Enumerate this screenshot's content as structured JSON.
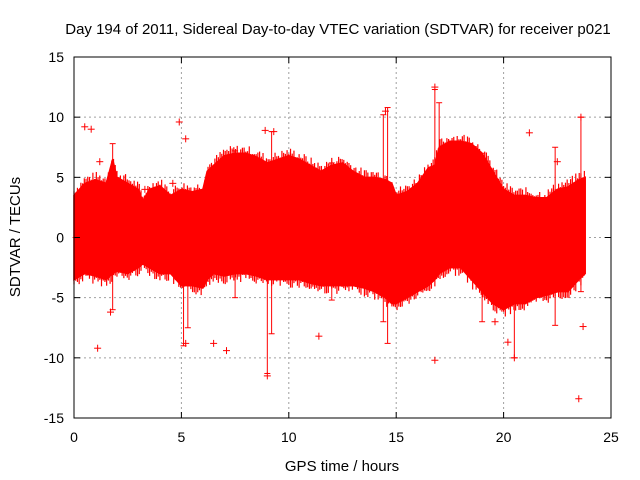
{
  "chart_data": {
    "type": "scatter",
    "title": "Day 194 of 2011, Sidereal Day-to-day VTEC variation (SDTVAR) for receiver p021",
    "xlabel": "GPS time / hours",
    "ylabel": "SDTVAR / TECUs",
    "xlim": [
      0,
      25
    ],
    "ylim": [
      -15,
      15
    ],
    "xticks": [
      0,
      5,
      10,
      15,
      20,
      25
    ],
    "yticks": [
      -15,
      -10,
      -5,
      0,
      5,
      10,
      15
    ],
    "xtick_labels": [
      "0",
      "5",
      "10",
      "15",
      "20",
      "25"
    ],
    "ytick_labels": [
      "-15",
      "-10",
      "-5",
      "0",
      "5",
      "10",
      "15"
    ],
    "grid": true,
    "series_color": "#ff0000",
    "marker": "+",
    "band_x": [
      0,
      0.5,
      1.0,
      1.5,
      1.8,
      2.0,
      2.5,
      3.0,
      3.2,
      3.5,
      4.0,
      4.5,
      5.0,
      5.5,
      6.0,
      6.2,
      6.5,
      7.0,
      7.5,
      8.0,
      8.5,
      9.0,
      9.5,
      10.0,
      10.5,
      11.0,
      11.5,
      12.0,
      12.5,
      13.0,
      13.5,
      14.0,
      14.5,
      14.8,
      15.0,
      15.5,
      16.0,
      16.5,
      16.8,
      17.0,
      17.5,
      18.0,
      18.5,
      19.0,
      19.5,
      20.0,
      20.5,
      21.0,
      21.5,
      22.0,
      22.5,
      23.0,
      23.5,
      23.8
    ],
    "band_upper": [
      3.5,
      4.5,
      4.8,
      4.5,
      6.5,
      5.0,
      4.5,
      4.0,
      3.0,
      4.0,
      4.3,
      3.5,
      4.0,
      3.8,
      4.0,
      5.5,
      6.0,
      6.8,
      7.0,
      7.0,
      6.7,
      6.2,
      6.5,
      6.8,
      6.5,
      6.0,
      5.5,
      6.0,
      6.2,
      5.5,
      5.0,
      5.0,
      4.8,
      4.5,
      3.5,
      3.8,
      4.5,
      5.8,
      6.0,
      7.5,
      8.0,
      8.0,
      7.8,
      7.0,
      5.5,
      4.0,
      3.5,
      3.5,
      3.3,
      3.3,
      4.0,
      4.2,
      4.8,
      5.0
    ],
    "band_lower": [
      -3.5,
      -3.0,
      -3.2,
      -3.5,
      -3.0,
      -2.8,
      -3.0,
      -2.5,
      -2.2,
      -2.5,
      -3.0,
      -3.0,
      -4.0,
      -4.0,
      -4.2,
      -3.5,
      -3.0,
      -3.2,
      -3.0,
      -3.0,
      -3.2,
      -3.5,
      -3.5,
      -3.5,
      -3.5,
      -3.8,
      -4.0,
      -4.0,
      -4.0,
      -4.0,
      -4.2,
      -4.5,
      -5.0,
      -5.5,
      -5.5,
      -5.0,
      -4.5,
      -4.0,
      -3.5,
      -3.0,
      -2.5,
      -2.5,
      -3.5,
      -4.5,
      -5.5,
      -6.0,
      -5.5,
      -5.5,
      -5.0,
      -4.8,
      -4.5,
      -4.5,
      -3.5,
      -3.0
    ],
    "outliers": [
      {
        "x": 0.5,
        "y": 9.2
      },
      {
        "x": 0.8,
        "y": 9.0
      },
      {
        "x": 1.1,
        "y": -9.2
      },
      {
        "x": 1.2,
        "y": 6.3
      },
      {
        "x": 1.7,
        "y": -6.2
      },
      {
        "x": 4.9,
        "y": 9.6
      },
      {
        "x": 5.2,
        "y": 8.2
      },
      {
        "x": 5.2,
        "y": -8.8
      },
      {
        "x": 6.5,
        "y": -8.8
      },
      {
        "x": 7.1,
        "y": -9.4
      },
      {
        "x": 8.9,
        "y": 8.9
      },
      {
        "x": 9.0,
        "y": -11.5
      },
      {
        "x": 9.3,
        "y": 8.8
      },
      {
        "x": 11.4,
        "y": -8.2
      },
      {
        "x": 14.5,
        "y": 10.5
      },
      {
        "x": 16.8,
        "y": -10.2
      },
      {
        "x": 16.8,
        "y": 12.5
      },
      {
        "x": 19.6,
        "y": -7.0
      },
      {
        "x": 20.2,
        "y": -8.7
      },
      {
        "x": 20.5,
        "y": -10.0
      },
      {
        "x": 21.2,
        "y": 8.7
      },
      {
        "x": 23.5,
        "y": -13.4
      },
      {
        "x": 23.6,
        "y": 10.0
      },
      {
        "x": 23.7,
        "y": -7.4
      },
      {
        "x": 0.1,
        "y": 0.0
      },
      {
        "x": 4.6,
        "y": 4.5
      },
      {
        "x": 3.3,
        "y": 4.0
      },
      {
        "x": 22.5,
        "y": 6.3
      }
    ],
    "spikes": [
      {
        "x": 1.8,
        "y1": -6.0,
        "y2": 7.8
      },
      {
        "x": 5.1,
        "y1": -9.0,
        "y2": 3.5
      },
      {
        "x": 5.3,
        "y1": -7.5,
        "y2": 3.5
      },
      {
        "x": 9.0,
        "y1": -11.3,
        "y2": 6.0
      },
      {
        "x": 9.2,
        "y1": -8.0,
        "y2": 8.8
      },
      {
        "x": 14.4,
        "y1": -7.0,
        "y2": 10.2
      },
      {
        "x": 14.6,
        "y1": -8.8,
        "y2": 10.8
      },
      {
        "x": 16.8,
        "y1": -3.0,
        "y2": 12.3
      },
      {
        "x": 17.0,
        "y1": -2.5,
        "y2": 11.2
      },
      {
        "x": 20.5,
        "y1": -10.0,
        "y2": 2.5
      },
      {
        "x": 22.4,
        "y1": -7.3,
        "y2": 7.5
      },
      {
        "x": 23.6,
        "y1": -4.5,
        "y2": 10.0
      },
      {
        "x": 19.0,
        "y1": -7.0,
        "y2": 7.0
      },
      {
        "x": 12.0,
        "y1": -5.2,
        "y2": 6.2
      },
      {
        "x": 7.5,
        "y1": -5.0,
        "y2": 7.2
      }
    ]
  }
}
